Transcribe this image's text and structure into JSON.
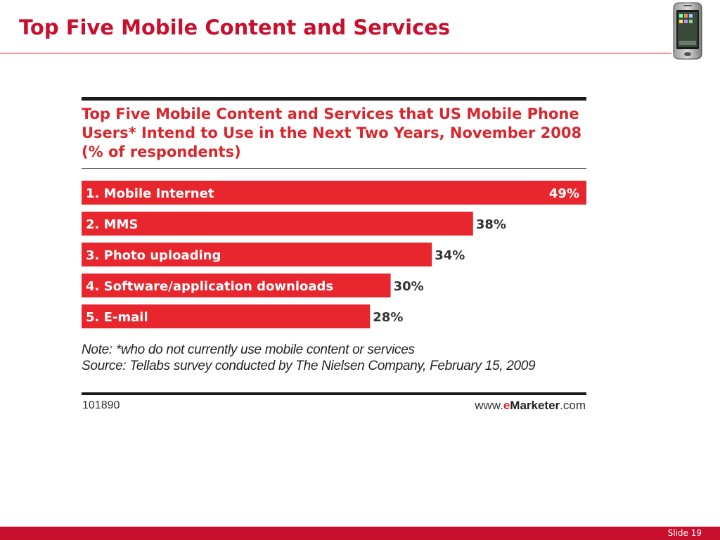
{
  "slide": {
    "title": "Top Five Mobile Content and Services",
    "number": "Slide 19"
  },
  "phone_icon": "smartphone-icon",
  "colors": {
    "accent": "#c8102e",
    "bar": "#e8262e",
    "title_red": "#d8262d"
  },
  "chart_data": {
    "type": "bar",
    "orientation": "horizontal",
    "title": "Top Five Mobile Content and Services that US Mobile Phone Users* Intend to Use in the Next Two Years, November 2008 (% of respondents)",
    "categories": [
      "1. Mobile Internet",
      "2. MMS",
      "3. Photo uploading",
      "4. Software/application downloads",
      "5. E-mail"
    ],
    "values": [
      49,
      38,
      34,
      30,
      28
    ],
    "value_labels": [
      "49%",
      "38%",
      "34%",
      "30%",
      "28%"
    ],
    "unit": "%",
    "grid": false,
    "note": "Note: *who do not currently use mobile content or services",
    "source": "Source: Tellabs survey conducted by The Nielsen Company, February 15, 2009",
    "chart_id": "101890",
    "brand": {
      "prefix": "www.",
      "accent": "e",
      "name": "Marketer",
      "suffix": ".com"
    }
  }
}
